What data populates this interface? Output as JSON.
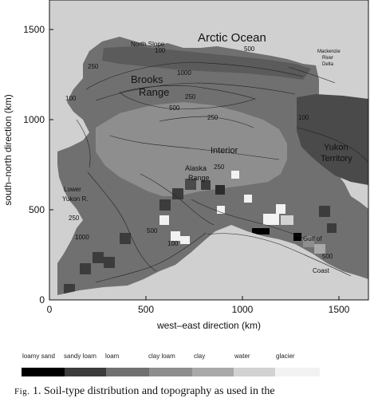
{
  "axes": {
    "xlabel": "west–east direction (km)",
    "ylabel": "south–north direction (km)",
    "x_ticks": [
      "0",
      "500",
      "1000",
      "1500"
    ],
    "y_ticks": [
      "0",
      "500",
      "1000",
      "1500"
    ],
    "xlim_km": [
      0,
      1650
    ],
    "ylim_km": [
      0,
      1650
    ]
  },
  "place_labels": [
    {
      "text": "Arctic Ocean",
      "id": "arctic-ocean"
    },
    {
      "text": "North Slope",
      "id": "north-slope"
    },
    {
      "text": "Brooks",
      "id": "brooks"
    },
    {
      "text": "Range",
      "id": "range"
    },
    {
      "text": "Interior",
      "id": "interior"
    },
    {
      "text": "Alaska",
      "id": "alaska"
    },
    {
      "text": "Range",
      "id": "alaska-range"
    },
    {
      "text": "Yukon",
      "id": "yukon"
    },
    {
      "text": "Territory",
      "id": "territory"
    },
    {
      "text": "Lower",
      "id": "lower"
    },
    {
      "text": "Yukon R.",
      "id": "yukon-r"
    },
    {
      "text": "Mackenzie",
      "id": "mackenzie"
    },
    {
      "text": "River",
      "id": "river"
    },
    {
      "text": "Delta",
      "id": "delta"
    },
    {
      "text": "Gulf of",
      "id": "gulf-of"
    },
    {
      "text": "Coast",
      "id": "coast"
    }
  ],
  "contour_labels": [
    "100",
    "250",
    "500",
    "1000",
    "250",
    "500",
    "100",
    "250",
    "100",
    "1000",
    "250",
    "500",
    "100",
    "250",
    "500"
  ],
  "legend": [
    {
      "label": "loamy sand",
      "color": "#000000"
    },
    {
      "label": "sandy loam",
      "color": "#3c3c3c"
    },
    {
      "label": "loam",
      "color": "#707070"
    },
    {
      "label": "clay loam",
      "color": "#8e8e8e"
    },
    {
      "label": "clay",
      "color": "#a9a9a9"
    },
    {
      "label": "water",
      "color": "#d2d2d2"
    },
    {
      "label": "glacier",
      "color": "#f2f2f2"
    }
  ],
  "caption": {
    "fig": "Fig.",
    "text": " 1. Soil-type distribution and topography as used in the"
  }
}
